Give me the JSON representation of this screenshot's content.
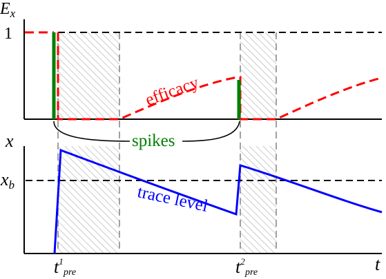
{
  "top_panel": {
    "y_axis_label_main": "E",
    "y_axis_label_sub": "x",
    "tick_one": "1",
    "efficacy_label": "efficacy"
  },
  "spikes_label": "spikes",
  "bottom_panel": {
    "y_axis_label": "x",
    "baseline_label_main": "x",
    "baseline_label_sub": "b",
    "trace_label": "trace level"
  },
  "x_axis": {
    "t_label": "t",
    "spike1_main": "t",
    "spike1_sup": "1",
    "spike1_sub": "pre",
    "spike2_main": "t",
    "spike2_sup": "2",
    "spike2_sub": "pre"
  },
  "colors": {
    "efficacy": "#ff0000",
    "spikes": "#008000",
    "trace": "#0000ff",
    "dashed_reference": "#000000",
    "refractory_shading": "#9a9a9a"
  }
}
